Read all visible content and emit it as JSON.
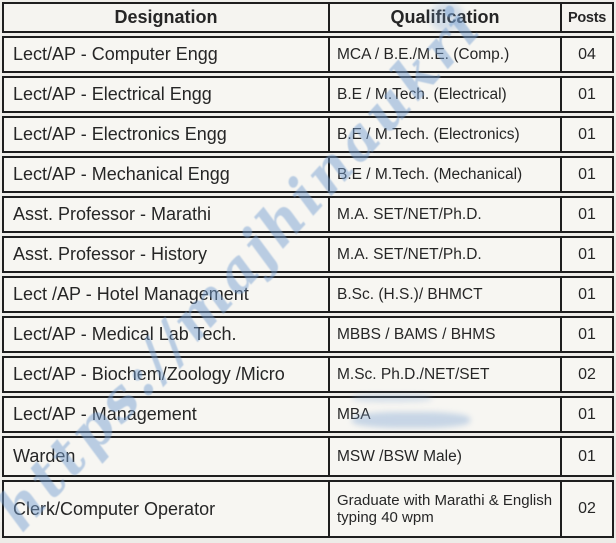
{
  "watermark": {
    "text": "https://majhinaukri",
    "color": "#769ed0"
  },
  "table": {
    "headers": {
      "designation": "Designation",
      "qualification": "Qualification",
      "posts": "Posts"
    },
    "rows": [
      {
        "designation": "Lect/AP - Computer Engg",
        "qualification": "MCA / B.E./M.E. (Comp.)",
        "posts": "04"
      },
      {
        "designation": "Lect/AP - Electrical Engg",
        "qualification": "B.E / M.Tech. (Electrical)",
        "posts": "01"
      },
      {
        "designation": "Lect/AP - Electronics Engg",
        "qualification": "B.E / M.Tech. (Electronics)",
        "posts": "01"
      },
      {
        "designation": "Lect/AP - Mechanical Engg",
        "qualification": "B.E / M.Tech. (Mechanical)",
        "posts": "01"
      },
      {
        "designation": "Asst. Professor - Marathi",
        "qualification": "M.A. SET/NET/Ph.D.",
        "posts": "01"
      },
      {
        "designation": "Asst. Professor - History",
        "qualification": "M.A. SET/NET/Ph.D.",
        "posts": "01"
      },
      {
        "designation": "Lect /AP - Hotel Management",
        "qualification": "B.Sc. (H.S.)/ BHMCT",
        "posts": "01"
      },
      {
        "designation": "Lect/AP - Medical Lab Tech.",
        "qualification": "MBBS / BAMS / BHMS",
        "posts": "01"
      },
      {
        "designation": "Lect/AP - Biochem/Zoology /Micro",
        "qualification": "M.Sc. Ph.D./NET/SET",
        "posts": "02"
      },
      {
        "designation": "Lect/AP - Management",
        "qualification": "MBA",
        "posts": "01"
      },
      {
        "designation": "Warden",
        "qualification": "MSW /BSW  Male)",
        "posts": "01"
      },
      {
        "designation": "Clerk/Computer Operator",
        "qualification": "Graduate with Marathi & English typing 40 wpm",
        "posts": "02"
      }
    ]
  }
}
